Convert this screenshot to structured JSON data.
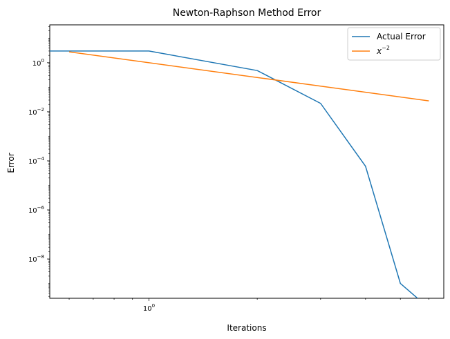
{
  "chart_data": {
    "type": "line",
    "title": "Newton-Raphson Method Error",
    "xlabel": "Iterations",
    "ylabel": "Error",
    "xscale": "log",
    "yscale": "log",
    "xlim": [
      0.53,
      6.6
    ],
    "ylim": [
      2.5e-10,
      35
    ],
    "grid": false,
    "legend_position": "top-right",
    "x_ticks": [
      {
        "value": 1,
        "label": "10",
        "exp": "0"
      }
    ],
    "y_ticks": [
      {
        "value": 1,
        "label": "10",
        "exp": "0"
      },
      {
        "value": 0.01,
        "label": "10",
        "exp": "−2"
      },
      {
        "value": 0.0001,
        "label": "10",
        "exp": "−4"
      },
      {
        "value": 1e-06,
        "label": "10",
        "exp": "−6"
      },
      {
        "value": 1e-08,
        "label": "10",
        "exp": "−8"
      }
    ],
    "series": [
      {
        "name": "Actual Error",
        "color": "#1f77b4",
        "x": [
          0.5,
          1,
          2,
          3,
          4,
          5,
          6
        ],
        "y": [
          3.0,
          3.0,
          0.48,
          0.022,
          6e-05,
          1e-09,
          1e-10
        ]
      },
      {
        "name_base": "x",
        "name_exp": "−2",
        "color": "#ff7f0e",
        "x": [
          0.6,
          6
        ],
        "y": [
          2.78,
          0.0278
        ]
      }
    ]
  }
}
